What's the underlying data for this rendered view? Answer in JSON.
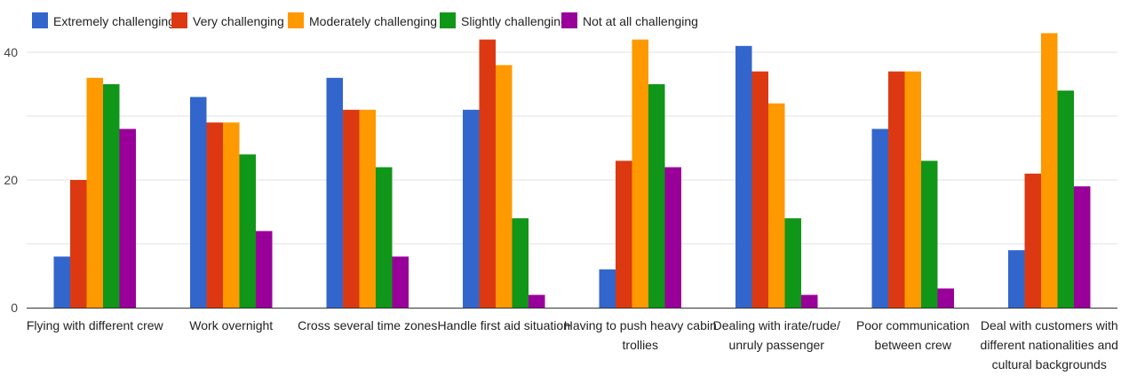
{
  "chart_data": {
    "type": "bar",
    "categories": [
      [
        "Flying with different crew"
      ],
      [
        "Work overnight"
      ],
      [
        "Cross several time zones"
      ],
      [
        "Handle first aid situation"
      ],
      [
        "Having to push heavy cabin",
        "trollies"
      ],
      [
        "Dealing with irate/rude/",
        "unruly passenger"
      ],
      [
        "Poor communication",
        "between crew"
      ],
      [
        "Deal with customers with",
        "different nationalities and",
        "cultural backgrounds"
      ]
    ],
    "series": [
      {
        "name": "Extremely challenging",
        "color": "#3366cc",
        "values": [
          8,
          33,
          36,
          31,
          6,
          41,
          28,
          9
        ]
      },
      {
        "name": "Very challenging",
        "color": "#dc3912",
        "values": [
          20,
          29,
          31,
          42,
          23,
          37,
          37,
          21
        ]
      },
      {
        "name": "Moderately challenging",
        "color": "#ff9900",
        "values": [
          36,
          29,
          31,
          38,
          42,
          32,
          37,
          43
        ]
      },
      {
        "name": "Slightly challenging",
        "color": "#109618",
        "values": [
          35,
          24,
          22,
          14,
          35,
          14,
          23,
          34
        ]
      },
      {
        "name": "Not at all challenging",
        "color": "#990099",
        "values": [
          28,
          12,
          8,
          2,
          22,
          2,
          3,
          19
        ]
      }
    ],
    "y_ticks": [
      0,
      20,
      40
    ],
    "ylim": [
      0,
      44
    ],
    "grid": true,
    "legend_position": "top-left"
  }
}
